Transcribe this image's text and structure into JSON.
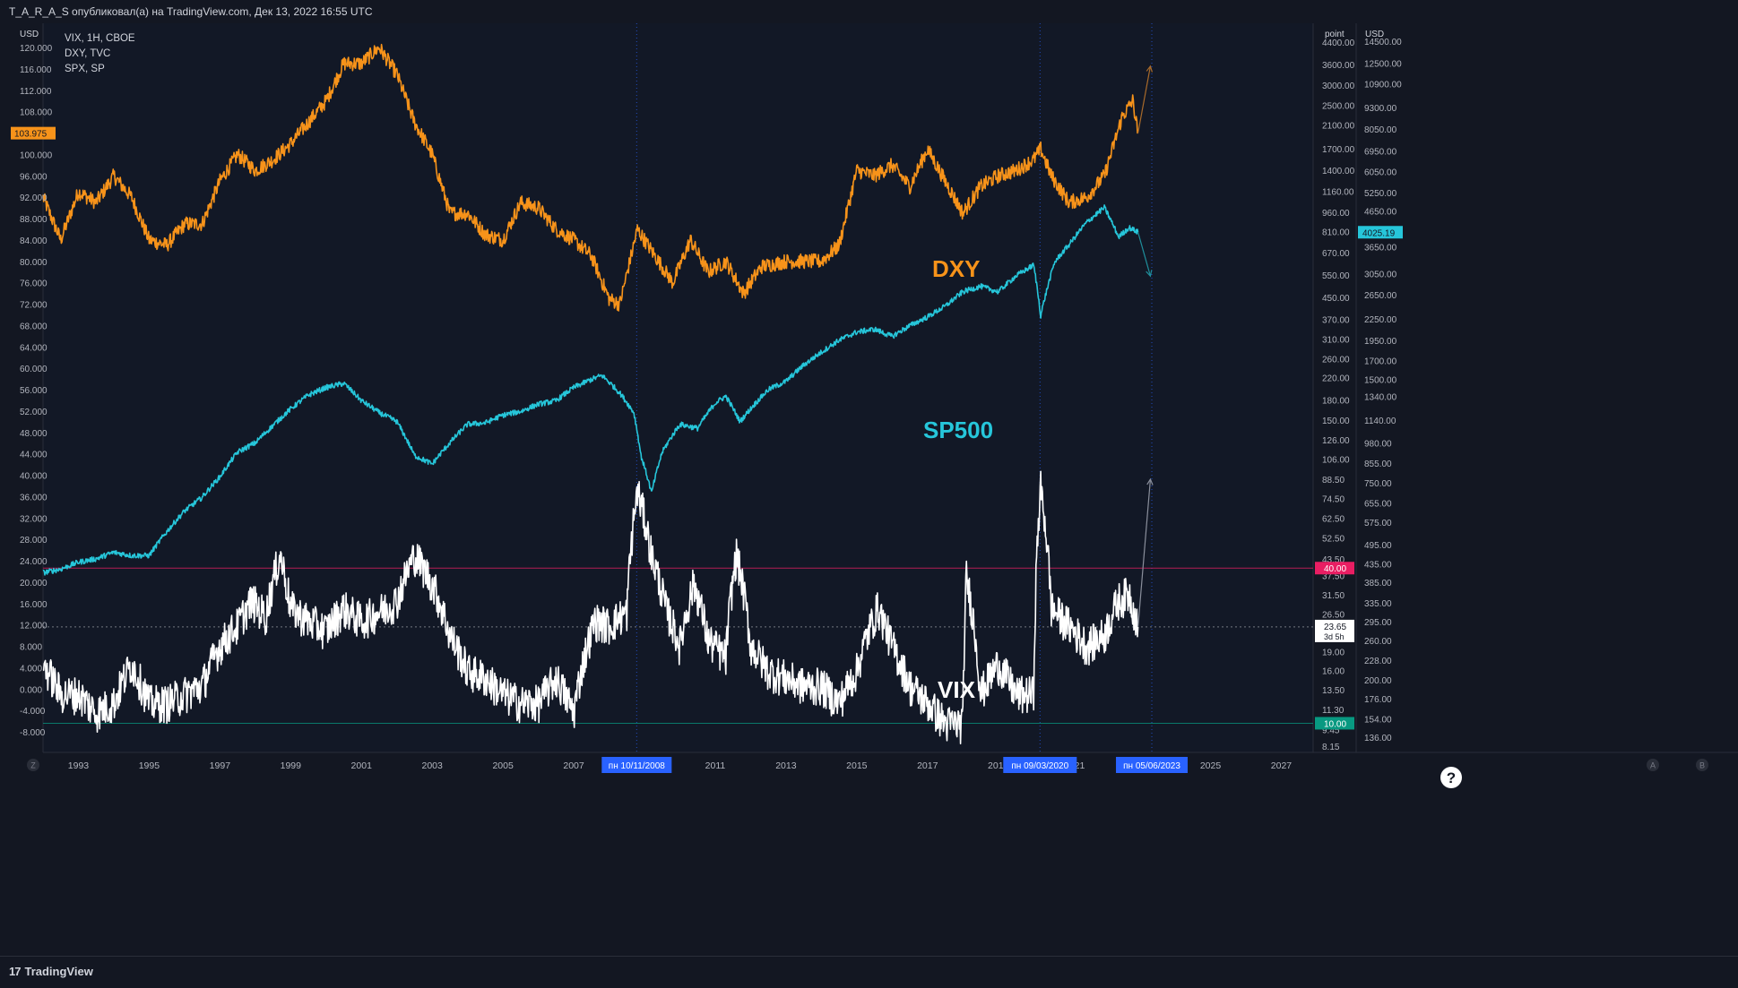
{
  "header": {
    "title": "T_A_R_A_S опубликовал(а) на TradingView.com, Дек 13, 2022 16:55 UTC"
  },
  "footer": {
    "brand": "TradingView"
  },
  "chart_data": {
    "type": "line",
    "legend_items": [
      "VIX, 1H, CBOE",
      "DXY, TVC",
      "SPX, SP"
    ],
    "left_axis": {
      "unit": "USD",
      "ticks": [
        "120.000",
        "116.000",
        "112.000",
        "108.000",
        "104.000",
        "100.000",
        "96.000",
        "92.000",
        "88.000",
        "84.000",
        "80.000",
        "76.000",
        "72.000",
        "68.000",
        "64.000",
        "60.000",
        "56.000",
        "52.000",
        "48.000",
        "44.000",
        "40.000",
        "36.000",
        "32.000",
        "28.000",
        "24.000",
        "20.000",
        "16.000",
        "12.000",
        "8.000",
        "4.000",
        "0.000",
        "-4.000",
        "-8.000"
      ],
      "badge": "103.975"
    },
    "mid_axis": {
      "unit": "point",
      "ticks": [
        "4400.00",
        "3600.00",
        "3000.00",
        "2500.00",
        "2100.00",
        "1700.00",
        "1400.00",
        "1160.00",
        "960.00",
        "810.00",
        "670.00",
        "550.00",
        "450.00",
        "370.00",
        "310.00",
        "260.00",
        "220.00",
        "180.00",
        "150.00",
        "126.00",
        "106.00",
        "88.50",
        "74.50",
        "62.50",
        "52.50",
        "43.50",
        "37.50",
        "31.50",
        "26.50",
        "23.65",
        "19.00",
        "16.00",
        "13.50",
        "11.30",
        "9.45",
        "8.15"
      ],
      "red_badge": "40.00",
      "green_badge": "10.00",
      "white_badge": "23.65",
      "white_badge_sub": "3d 5h"
    },
    "right_axis": {
      "unit": "USD",
      "ticks": [
        "14500.00",
        "12500.00",
        "10900.00",
        "9300.00",
        "8050.00",
        "6950.00",
        "6050.00",
        "5250.00",
        "4650.00",
        "4025.19",
        "3650.00",
        "3050.00",
        "2650.00",
        "2250.00",
        "1950.00",
        "1700.00",
        "1500.00",
        "1340.00",
        "1140.00",
        "980.00",
        "855.00",
        "750.00",
        "655.00",
        "575.00",
        "495.00",
        "435.00",
        "385.00",
        "335.00",
        "295.00",
        "260.00",
        "228.00",
        "200.00",
        "176.00",
        "154.00",
        "136.00"
      ],
      "badge": "4025.19"
    },
    "x_axis": {
      "ticks": [
        "1993",
        "1995",
        "1997",
        "1999",
        "2001",
        "2003",
        "2005",
        "2007",
        "2011",
        "2013",
        "2015",
        "2017",
        "2019",
        "21",
        "2025",
        "2027"
      ],
      "highlight_labels": [
        "пн 10/11/2008",
        "пн 09/03/2020",
        "пн 05/06/2023"
      ],
      "corner_labels": [
        "Z",
        "A",
        "B"
      ]
    },
    "series": [
      {
        "name": "DXY",
        "color": "#f7931a",
        "x": [
          1992.0,
          1992.5,
          1993.0,
          1993.5,
          1994.0,
          1994.5,
          1995.0,
          1995.5,
          1996.0,
          1996.5,
          1997.0,
          1997.5,
          1998.0,
          1998.5,
          1999.0,
          1999.5,
          2000.0,
          2000.5,
          2001.0,
          2001.5,
          2002.0,
          2002.5,
          2003.0,
          2003.5,
          2004.0,
          2004.5,
          2005.0,
          2005.5,
          2006.0,
          2006.5,
          2007.0,
          2007.5,
          2008.0,
          2008.3,
          2008.8,
          2009.2,
          2009.8,
          2010.3,
          2010.8,
          2011.3,
          2011.8,
          2012.3,
          2013.0,
          2013.5,
          2014.0,
          2014.5,
          2015.0,
          2015.5,
          2016.0,
          2016.5,
          2017.0,
          2017.5,
          2018.0,
          2018.5,
          2019.0,
          2019.5,
          2020.0,
          2020.2,
          2020.5,
          2021.0,
          2021.5,
          2022.0,
          2022.5,
          2022.8,
          2022.95
        ],
        "values": [
          92,
          84,
          93,
          91,
          96,
          92,
          84,
          83,
          87,
          87,
          95,
          100,
          97,
          99,
          102,
          106,
          110,
          117,
          117,
          120,
          115,
          106,
          100,
          89,
          89,
          85,
          84,
          91,
          90,
          86,
          84,
          81,
          73,
          72,
          86,
          82,
          76,
          84,
          78,
          80,
          74,
          79,
          80,
          80,
          80,
          83,
          97,
          96,
          98,
          94,
          101,
          95,
          89,
          94,
          96,
          97,
          99,
          101,
          96,
          91,
          92,
          96,
          107,
          110,
          104
        ]
      },
      {
        "name": "SPX",
        "color": "#26c6da",
        "x": [
          1992.0,
          1992.5,
          1993.0,
          1993.5,
          1994.0,
          1994.5,
          1995.0,
          1995.5,
          1996.0,
          1996.5,
          1997.0,
          1997.5,
          1998.0,
          1998.5,
          1999.0,
          1999.5,
          2000.0,
          2000.5,
          2001.0,
          2001.5,
          2002.0,
          2002.5,
          2003.0,
          2003.5,
          2004.0,
          2004.5,
          2005.0,
          2005.5,
          2006.0,
          2006.5,
          2007.0,
          2007.5,
          2007.8,
          2008.3,
          2008.7,
          2008.9,
          2009.2,
          2009.5,
          2010.0,
          2010.5,
          2011.0,
          2011.3,
          2011.7,
          2012.5,
          2013.0,
          2013.5,
          2014.0,
          2014.5,
          2015.0,
          2015.5,
          2016.0,
          2016.5,
          2017.0,
          2017.5,
          2018.0,
          2018.5,
          2019.0,
          2019.5,
          2020.0,
          2020.2,
          2020.6,
          2021.0,
          2021.5,
          2022.0,
          2022.4,
          2022.7,
          2022.95
        ],
        "values": [
          410,
          420,
          440,
          450,
          470,
          460,
          460,
          540,
          620,
          680,
          780,
          920,
          980,
          1100,
          1230,
          1350,
          1420,
          1460,
          1300,
          1200,
          1130,
          900,
          850,
          980,
          1110,
          1120,
          1180,
          1210,
          1270,
          1300,
          1420,
          1500,
          1540,
          1370,
          1200,
          900,
          700,
          920,
          1110,
          1080,
          1280,
          1340,
          1130,
          1400,
          1480,
          1650,
          1800,
          1950,
          2060,
          2100,
          2000,
          2150,
          2280,
          2450,
          2700,
          2800,
          2700,
          3000,
          3230,
          2300,
          3300,
          3700,
          4300,
          4750,
          3900,
          4150,
          4025
        ]
      },
      {
        "name": "VIX",
        "color": "#ffffff",
        "x": [
          1992.0,
          1992.5,
          1993.0,
          1993.5,
          1994.0,
          1994.5,
          1995.0,
          1995.5,
          1996.0,
          1996.5,
          1997.0,
          1997.5,
          1997.9,
          1998.3,
          1998.7,
          1999.0,
          1999.5,
          2000.0,
          2000.5,
          2001.0,
          2001.7,
          2002.0,
          2002.5,
          2003.0,
          2003.5,
          2004.0,
          2004.5,
          2005.0,
          2005.5,
          2006.0,
          2006.5,
          2007.0,
          2007.6,
          2008.0,
          2008.5,
          2008.8,
          2009.2,
          2009.6,
          2010.0,
          2010.4,
          2010.8,
          2011.3,
          2011.6,
          2012.0,
          2012.5,
          2013.0,
          2013.5,
          2014.0,
          2014.5,
          2015.0,
          2015.6,
          2016.0,
          2016.5,
          2017.0,
          2017.5,
          2018.0,
          2018.1,
          2018.5,
          2019.0,
          2019.5,
          2020.0,
          2020.2,
          2020.5,
          2021.0,
          2021.5,
          2022.0,
          2022.4,
          2022.7,
          2022.95
        ],
        "values": [
          17,
          13,
          13,
          11,
          12,
          17,
          12,
          12,
          13,
          14,
          20,
          24,
          30,
          26,
          45,
          28,
          25,
          23,
          28,
          25,
          28,
          30,
          45,
          35,
          22,
          16,
          15,
          13,
          12,
          12,
          15,
          11,
          25,
          24,
          27,
          80,
          45,
          28,
          20,
          35,
          21,
          18,
          45,
          20,
          16,
          15,
          14,
          14,
          12,
          16,
          28,
          20,
          14,
          12,
          10,
          10,
          37,
          13,
          17,
          13,
          13,
          82,
          28,
          24,
          20,
          22,
          30,
          32,
          23.65
        ]
      }
    ],
    "projections": [
      {
        "from_year": 2022.95,
        "to_year": 2023.3,
        "axis": "left",
        "from": 104,
        "to": 116.5,
        "color": "#a86a2a"
      },
      {
        "from_year": 2022.95,
        "to_year": 2023.3,
        "axis": "right",
        "from": 4025,
        "to": 3000,
        "color": "#1f8e9b"
      },
      {
        "from_year": 2022.95,
        "to_year": 2023.3,
        "axis": "mid",
        "from": 23.65,
        "to": 88.5,
        "color": "#8a8f9c"
      }
    ],
    "annotations": [
      {
        "text": "DXY",
        "color": "#f7931a"
      },
      {
        "text": "SP500",
        "color": "#26c6da"
      },
      {
        "text": "VIX",
        "color": "#ffffff"
      },
      {
        "text": "?",
        "color": "#ffffff"
      }
    ],
    "hlines": [
      {
        "axis": "mid",
        "value": 40,
        "color": "#e91e63",
        "style": "solid"
      },
      {
        "axis": "mid",
        "value": 10,
        "color": "#089981",
        "style": "solid"
      },
      {
        "axis": "mid",
        "value": 23.65,
        "color": "#9598a1",
        "style": "dotted"
      }
    ],
    "vlines_years": [
      2008.78,
      2020.18,
      2023.34
    ],
    "xlim": [
      1992.0,
      2027.9
    ],
    "left_ylim": [
      -8,
      122
    ],
    "grid": false
  }
}
